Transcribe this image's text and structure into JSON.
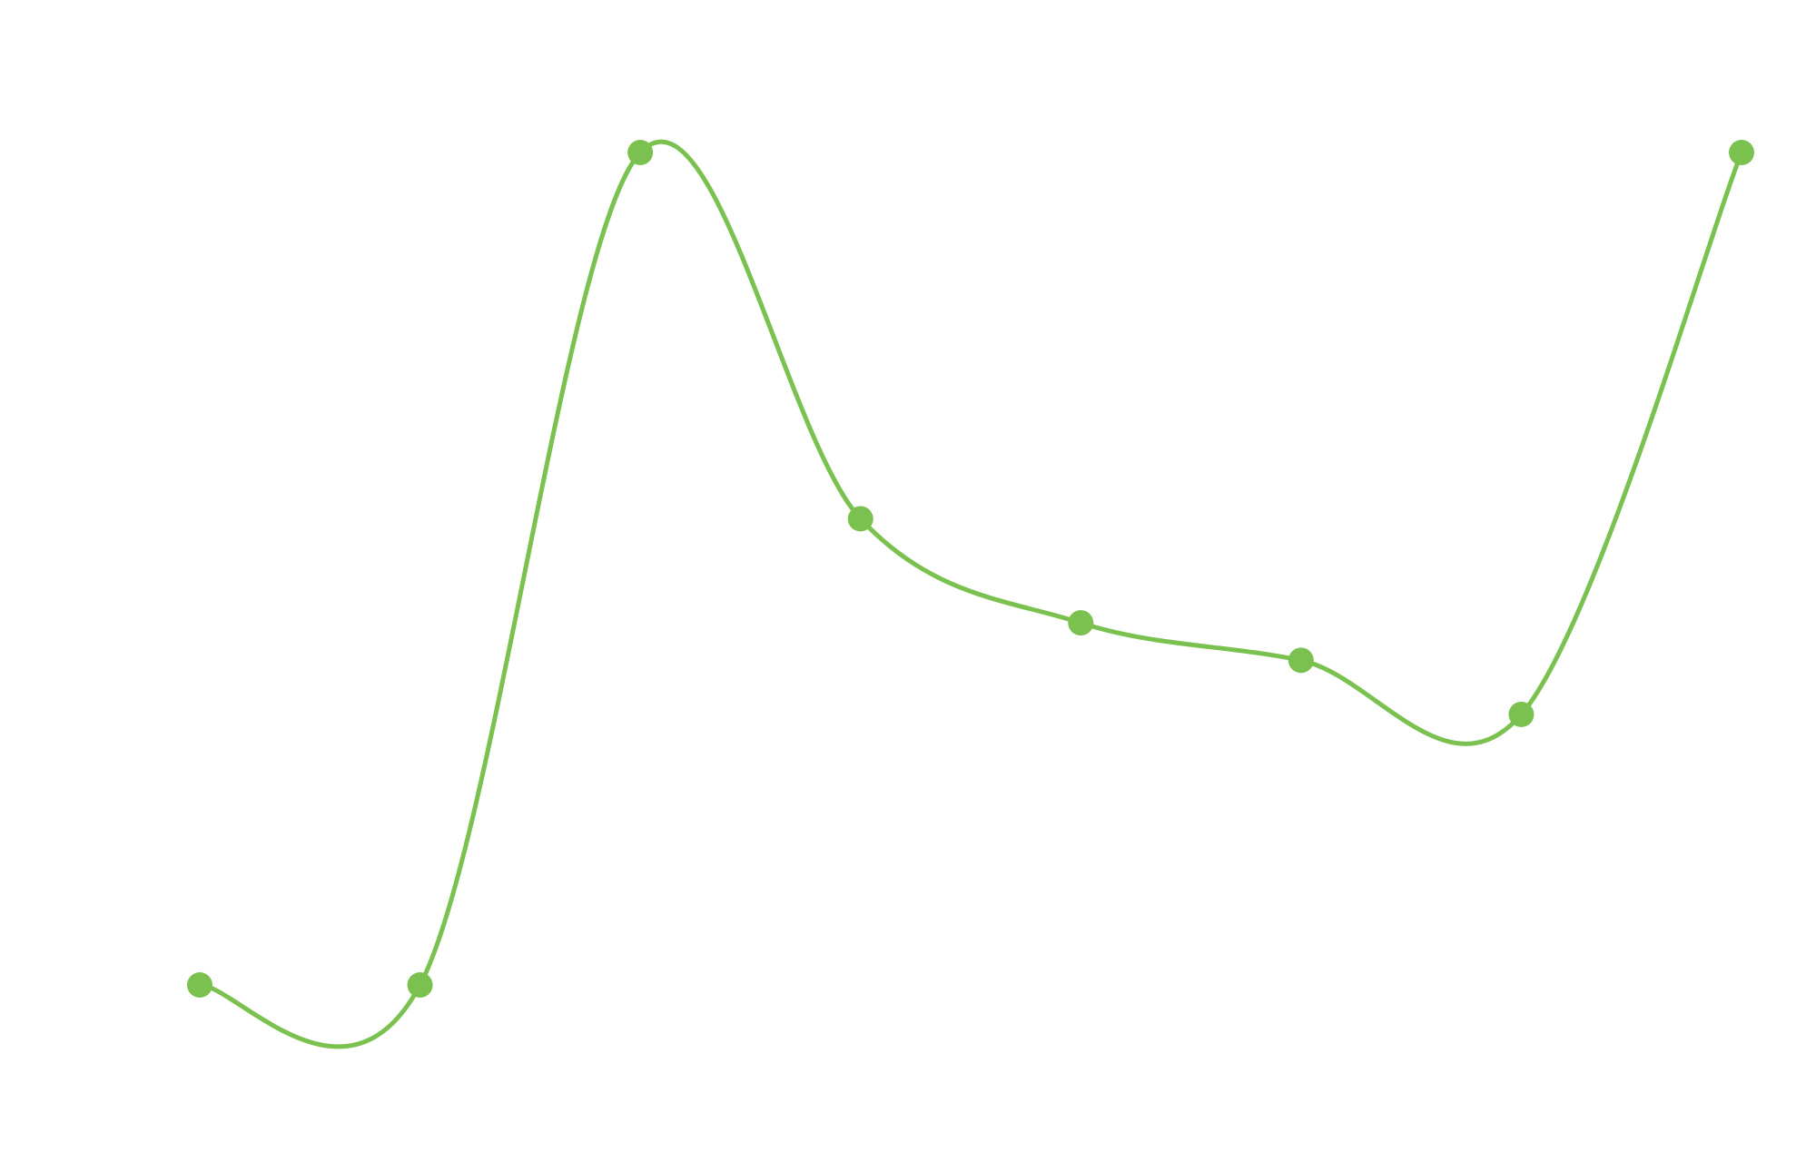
{
  "chart_data": {
    "type": "line",
    "title": "",
    "xlabel": "",
    "ylabel": "",
    "x": [
      0,
      1,
      2,
      3,
      4,
      5,
      6,
      7
    ],
    "series": [
      {
        "values": [
          0,
          0,
          100,
          56,
          43.5,
          39,
          32.5,
          100
        ]
      }
    ],
    "ylim": [
      0,
      100
    ],
    "grid": false,
    "legend": "none",
    "smooth": true,
    "line_color": "#7ac150",
    "marker_color": "#7ac150"
  }
}
